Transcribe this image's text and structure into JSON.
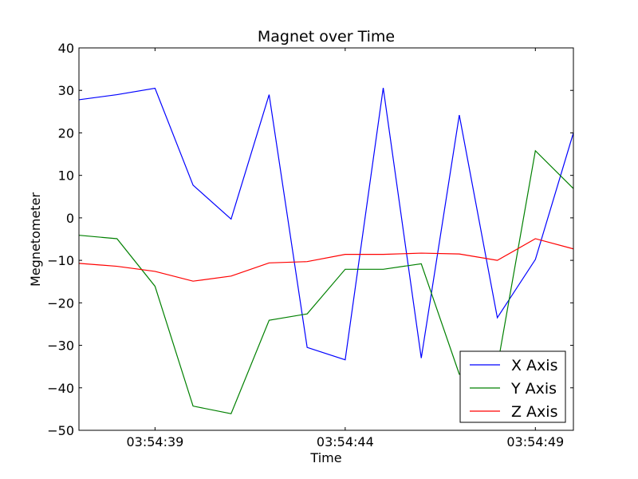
{
  "chart_data": {
    "type": "line",
    "title": "Magnet over Time",
    "xlabel": "Time",
    "ylabel": "Megnetometer",
    "x": [
      "03:54:37",
      "03:54:38",
      "03:54:39",
      "03:54:40",
      "03:54:41",
      "03:54:42",
      "03:54:43",
      "03:54:44",
      "03:54:45",
      "03:54:46",
      "03:54:47",
      "03:54:48",
      "03:54:49",
      "03:54:50"
    ],
    "xlim": [
      "03:54:37",
      "03:54:50"
    ],
    "x_ticks": [
      "03:54:39",
      "03:54:44",
      "03:54:49"
    ],
    "ylim": [
      -50,
      40
    ],
    "y_ticks": [
      -50,
      -40,
      -30,
      -20,
      -10,
      0,
      10,
      20,
      30,
      40
    ],
    "grid": false,
    "legend_position": "lower-right",
    "series": [
      {
        "name": "X Axis",
        "color": "#0000ff",
        "values": [
          27.8,
          29.0,
          30.5,
          7.7,
          -0.3,
          29.0,
          -30.5,
          -33.4,
          30.6,
          -33.0,
          24.2,
          -23.5,
          -9.8,
          20.0
        ]
      },
      {
        "name": "Y Axis",
        "color": "#008000",
        "values": [
          -4.1,
          -4.9,
          -16.1,
          -44.3,
          -46.1,
          -24.1,
          -22.6,
          -12.1,
          -12.1,
          -10.8,
          -36.8,
          -35.0,
          15.8,
          6.9
        ]
      },
      {
        "name": "Z Axis",
        "color": "#ff0000",
        "values": [
          -10.7,
          -11.4,
          -12.6,
          -14.9,
          -13.7,
          -10.6,
          -10.3,
          -8.6,
          -8.6,
          -8.3,
          -8.5,
          -10.0,
          -4.9,
          -7.3
        ]
      }
    ]
  }
}
